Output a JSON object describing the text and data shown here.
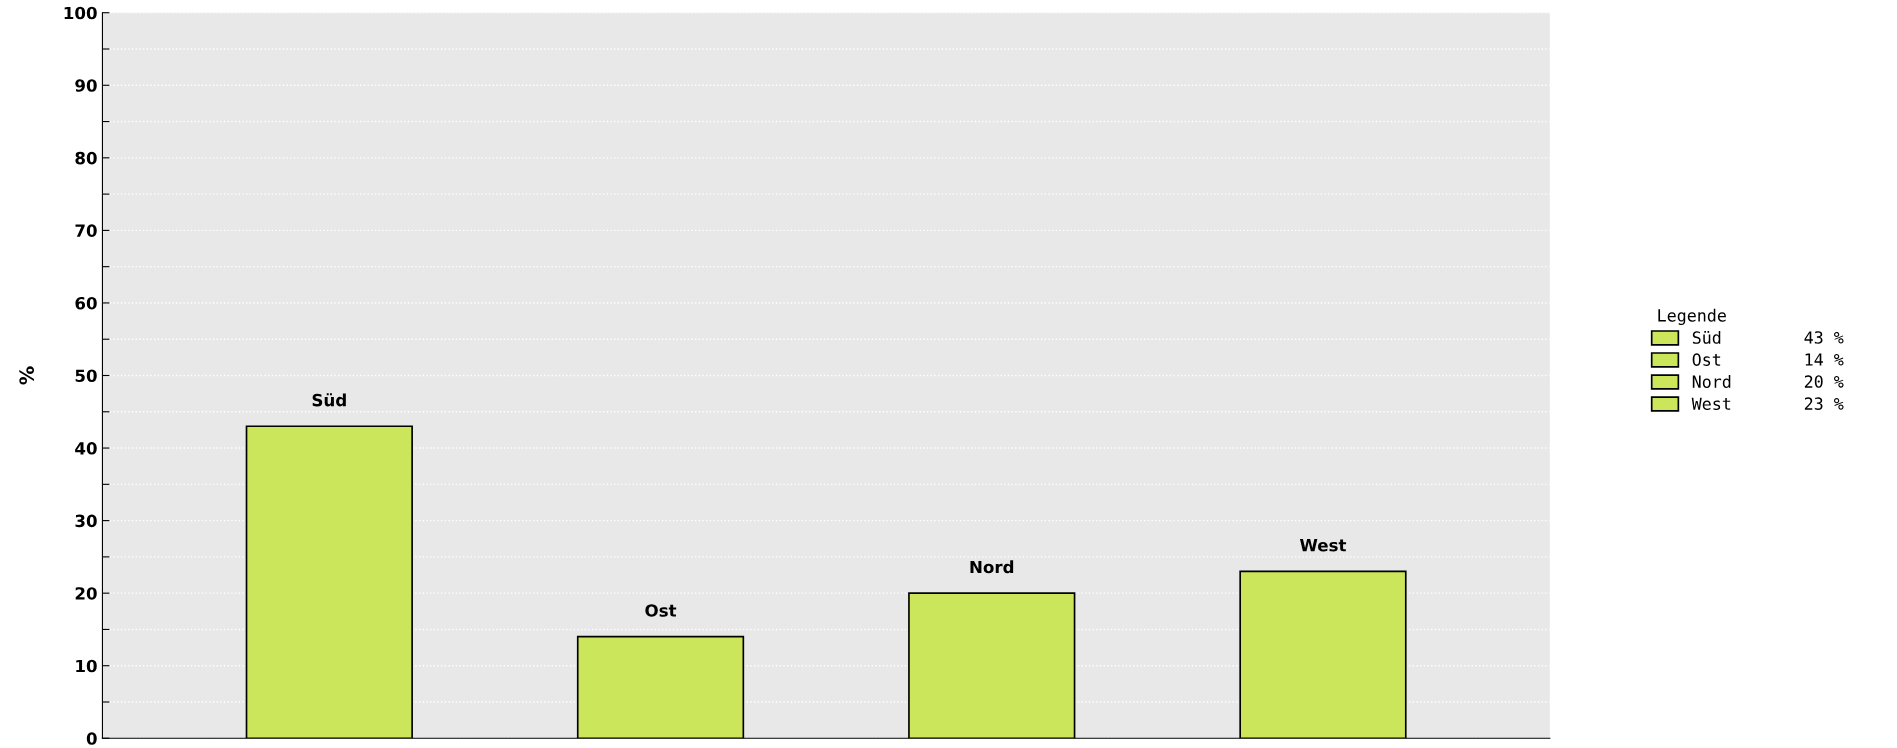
{
  "chart_data": {
    "type": "bar",
    "ylabel": "%",
    "legend_title": "Legende",
    "categories": [
      null,
      null,
      null,
      null
    ],
    "series": [
      {
        "name": "Süd",
        "color": "#cce65c",
        "values": [
          43,
          null,
          null,
          null
        ]
      },
      {
        "name": "Ost",
        "color": "#cce65c",
        "values": [
          null,
          14,
          null,
          null
        ]
      },
      {
        "name": "Nord",
        "color": "#cce65c",
        "values": [
          null,
          null,
          20,
          null
        ]
      },
      {
        "name": "West",
        "color": "#cce65c",
        "values": [
          null,
          null,
          null,
          23
        ]
      }
    ],
    "annotations": [
      "43 %",
      "14 %",
      "20 %",
      "23 %"
    ],
    "ylim": [
      0,
      100
    ],
    "yticks": [
      0,
      {
        "value": 5,
        "label": null
      },
      10,
      {
        "value": 15,
        "label": null
      },
      20,
      {
        "value": 25,
        "label": null
      },
      30,
      {
        "value": 35,
        "label": null
      },
      40,
      {
        "value": 45,
        "label": null
      },
      50,
      {
        "value": 55,
        "label": null
      },
      60,
      {
        "value": 65,
        "label": null
      },
      70,
      {
        "value": 75,
        "label": null
      },
      80,
      {
        "value": 85,
        "label": null
      },
      90,
      {
        "value": 95,
        "label": null
      },
      100
    ],
    "grid": "y",
    "legend": "right",
    "tick_labels": "y"
  }
}
